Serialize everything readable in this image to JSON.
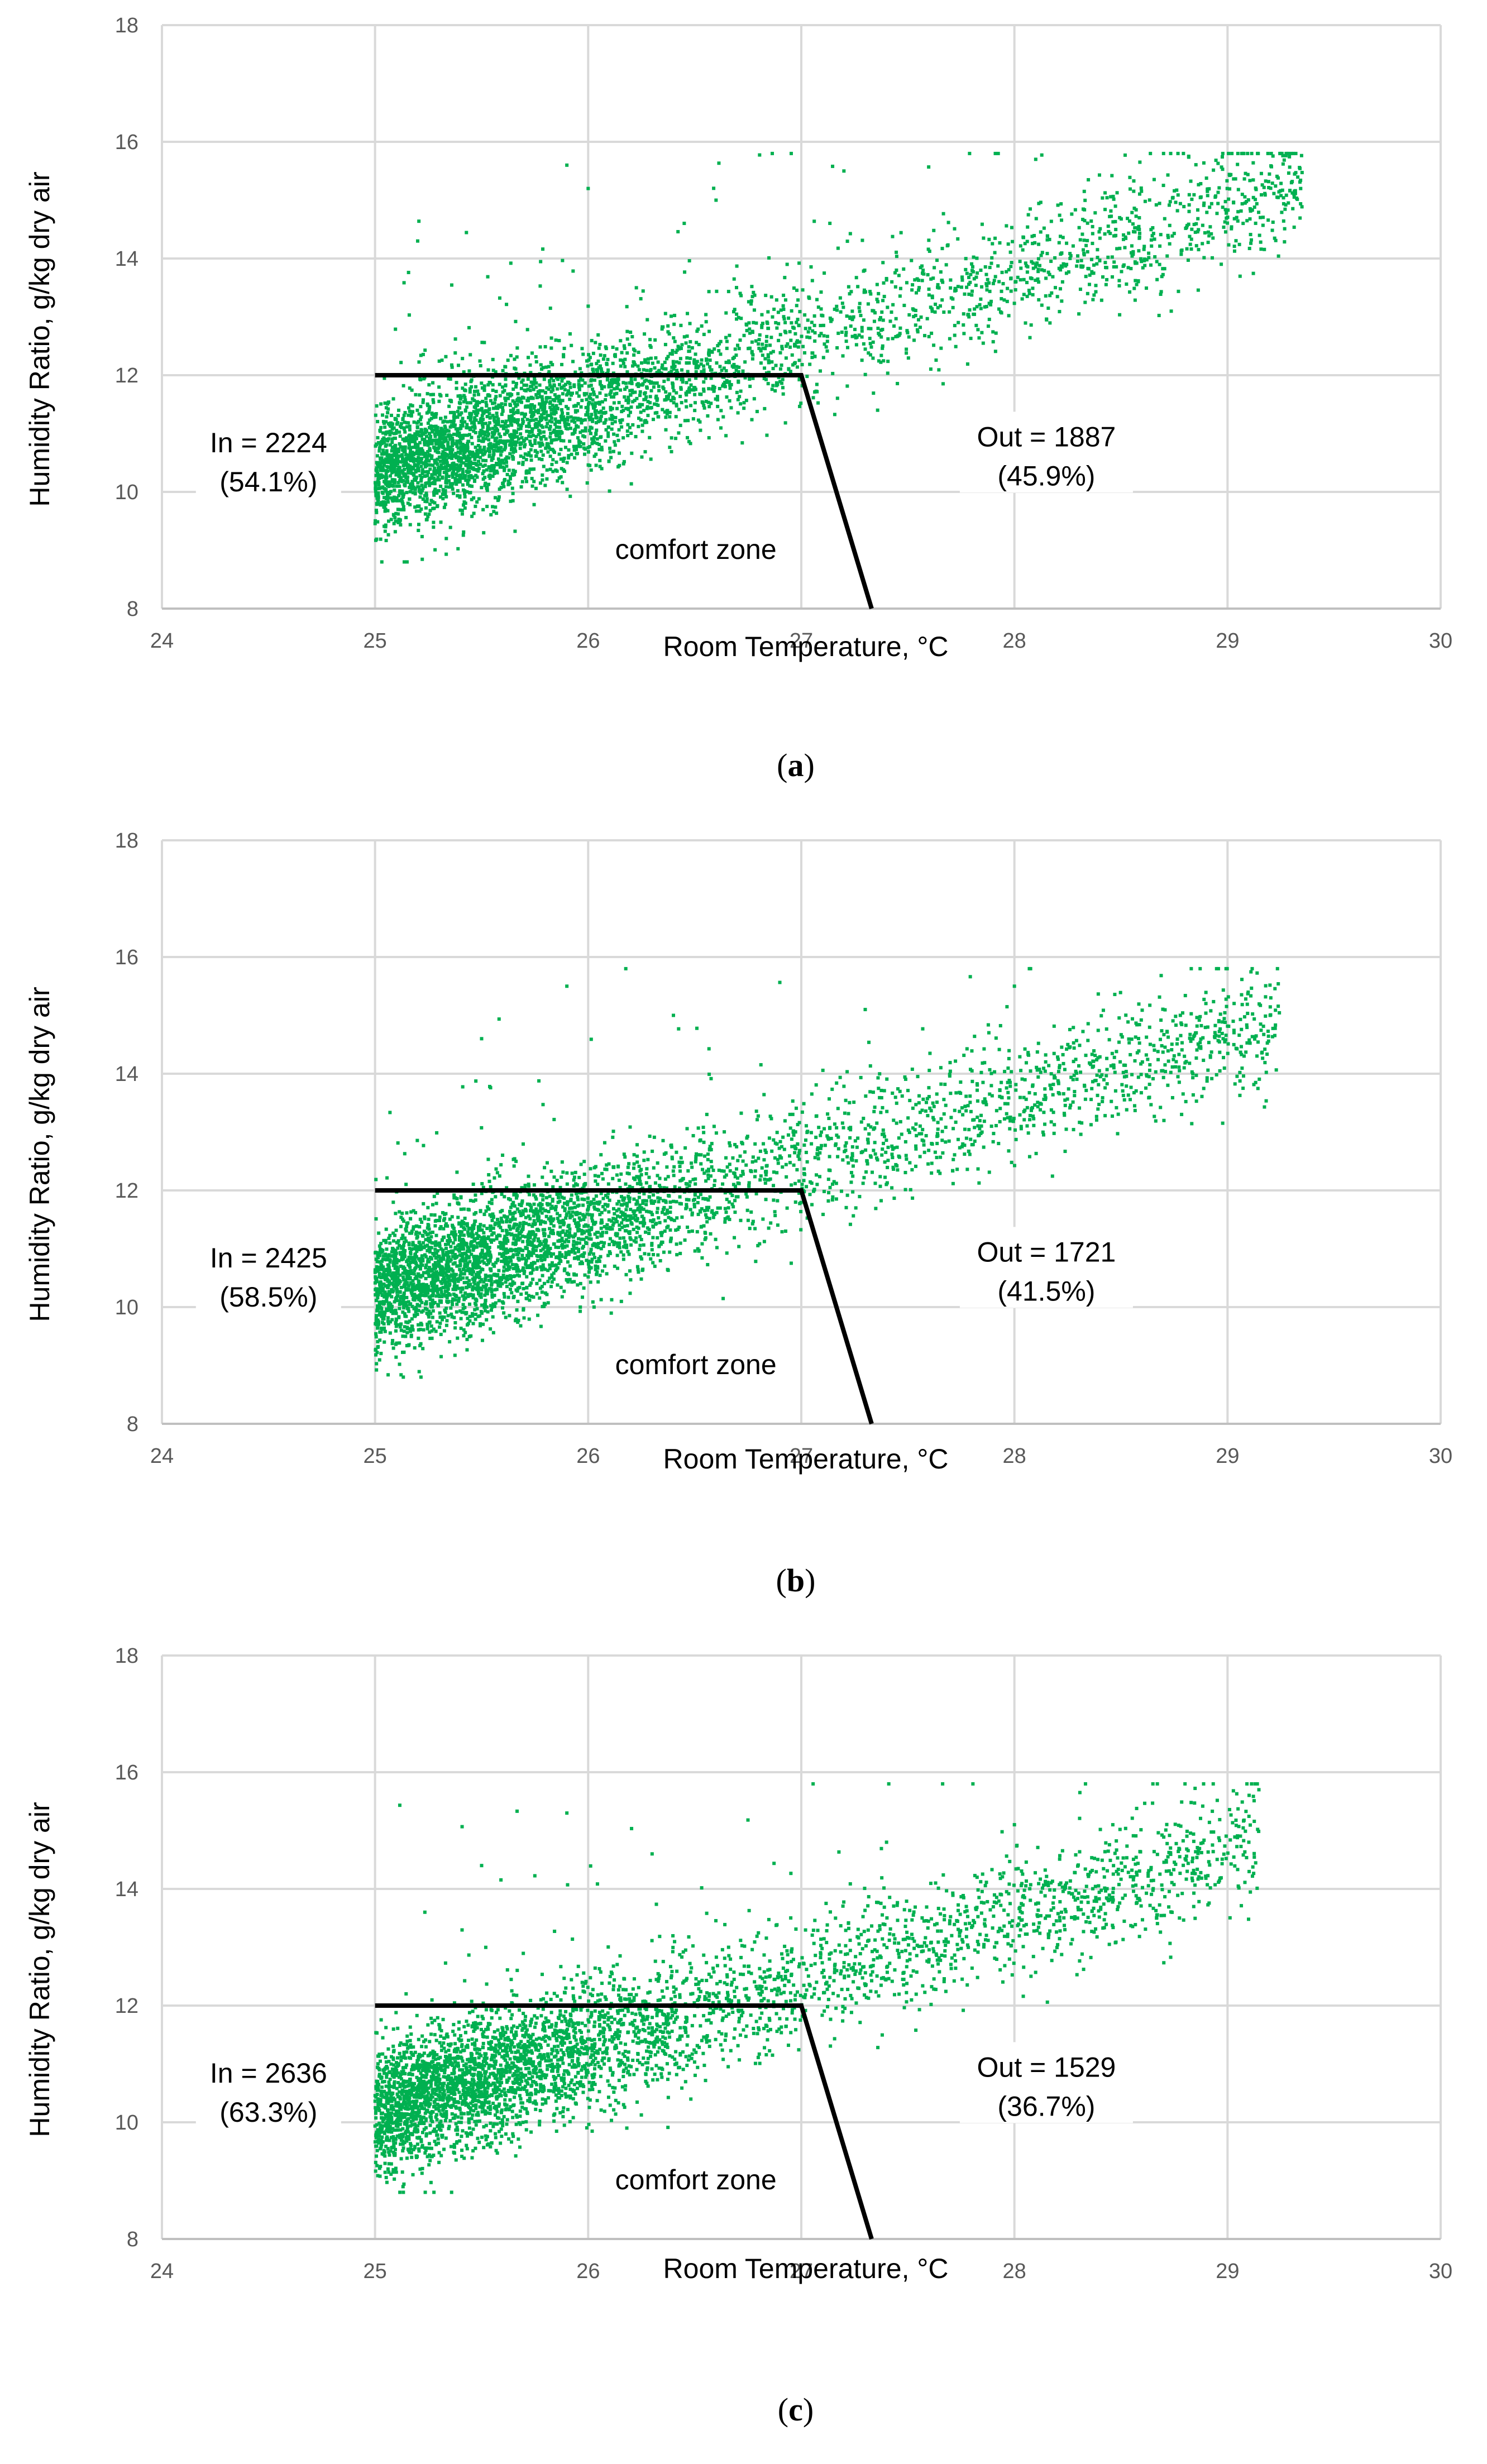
{
  "point_color": "#00b050",
  "chart_data": [
    {
      "type": "scatter",
      "panel": "a",
      "caption_paren_open": "(",
      "caption_letter": "a",
      "caption_paren_close": ")",
      "xlabel": "Room Temperature, °C",
      "ylabel": "Humidity Ratio, g/kg dry air",
      "xlim": [
        24,
        30
      ],
      "ylim": [
        8,
        18
      ],
      "xticks": [
        "24",
        "25",
        "26",
        "27",
        "28",
        "29",
        "30"
      ],
      "yticks": [
        "8",
        "10",
        "12",
        "14",
        "16",
        "18"
      ],
      "grid": true,
      "comfort_zone": {
        "label": "comfort zone",
        "boundary": [
          [
            25,
            12
          ],
          [
            27,
            12
          ],
          [
            27.33,
            8
          ]
        ]
      },
      "in": {
        "line1": "In = 2224",
        "line2": "(54.1%)"
      },
      "out": {
        "line1": "Out = 1887",
        "line2": "(45.9%)"
      },
      "point_cloud": {
        "x_range": [
          25.0,
          29.35
        ],
        "center_at_x25": 10.3,
        "slope_per_degC": 1.15,
        "spread": 0.55,
        "outliers_upper": [
          [
            25.2,
            14.3
          ],
          [
            25.9,
            15.6
          ],
          [
            26.0,
            15.2
          ],
          [
            26.6,
            15.0
          ],
          [
            27.2,
            15.5
          ],
          [
            28.1,
            15.7
          ],
          [
            29.3,
            15.3
          ]
        ]
      }
    },
    {
      "type": "scatter",
      "panel": "b",
      "caption_paren_open": "(",
      "caption_letter": "b",
      "caption_paren_close": ")",
      "xlabel": "Room Temperature, °C",
      "ylabel": "Humidity Ratio, g/kg dry air",
      "xlim": [
        24,
        30
      ],
      "ylim": [
        8,
        18
      ],
      "xticks": [
        "24",
        "25",
        "26",
        "27",
        "28",
        "29",
        "30"
      ],
      "yticks": [
        "8",
        "10",
        "12",
        "14",
        "16",
        "18"
      ],
      "grid": true,
      "comfort_zone": {
        "label": "comfort zone",
        "boundary": [
          [
            25,
            12
          ],
          [
            27,
            12
          ],
          [
            27.33,
            8
          ]
        ]
      },
      "in": {
        "line1": "In = 2425",
        "line2": "(58.5%)"
      },
      "out": {
        "line1": "Out = 1721",
        "line2": "(41.5%)"
      },
      "point_cloud": {
        "x_range": [
          25.0,
          29.25
        ],
        "center_at_x25": 10.25,
        "slope_per_degC": 1.1,
        "spread": 0.55,
        "outliers_upper": [
          [
            25.5,
            14.6
          ],
          [
            25.9,
            15.5
          ],
          [
            26.4,
            15.0
          ],
          [
            27.3,
            15.1
          ],
          [
            28.0,
            15.5
          ],
          [
            29.2,
            15.0
          ]
        ]
      }
    },
    {
      "type": "scatter",
      "panel": "c",
      "caption_paren_open": "(",
      "caption_letter": "c",
      "caption_paren_close": ")",
      "xlabel": "Room Temperature, °C",
      "ylabel": "Humidity Ratio, g/kg dry air",
      "xlim": [
        24,
        30
      ],
      "ylim": [
        8,
        18
      ],
      "xticks": [
        "24",
        "25",
        "26",
        "27",
        "28",
        "29",
        "30"
      ],
      "yticks": [
        "8",
        "10",
        "12",
        "14",
        "16",
        "18"
      ],
      "grid": true,
      "comfort_zone": {
        "label": "comfort zone",
        "boundary": [
          [
            25,
            12
          ],
          [
            27,
            12
          ],
          [
            27.33,
            8
          ]
        ]
      },
      "in": {
        "line1": "In = 2636",
        "line2": "(63.3%)"
      },
      "out": {
        "line1": "Out = 1529",
        "line2": "(36.7%)"
      },
      "point_cloud": {
        "x_range": [
          25.0,
          29.15
        ],
        "center_at_x25": 10.2,
        "slope_per_degC": 1.1,
        "spread": 0.55,
        "outliers_upper": [
          [
            25.5,
            14.4
          ],
          [
            25.9,
            15.3
          ],
          [
            26.3,
            14.6
          ],
          [
            27.4,
            14.8
          ],
          [
            28.0,
            15.1
          ],
          [
            29.1,
            14.8
          ]
        ]
      }
    }
  ]
}
